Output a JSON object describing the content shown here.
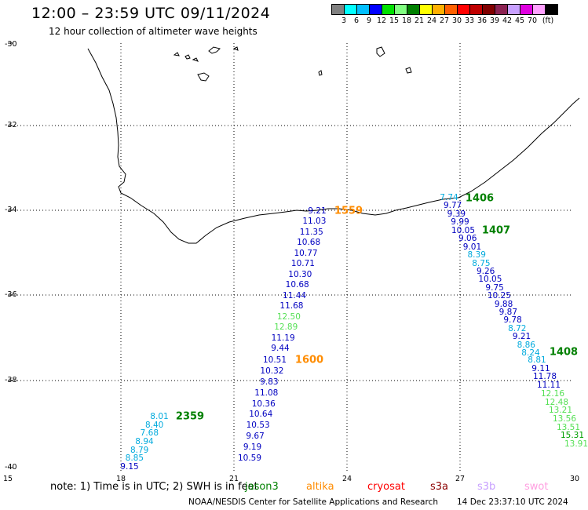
{
  "header": {
    "title": "12:00 – 23:59 UTC 09/11/2024",
    "subtitle": "12 hour collection of altimeter wave heights"
  },
  "colorbar": {
    "colors": [
      "#808080",
      "#00ffff",
      "#00bfff",
      "#0000ff",
      "#00e000",
      "#80ff80",
      "#008000",
      "#ffff00",
      "#ffb000",
      "#ff6000",
      "#ff0000",
      "#c00000",
      "#800000",
      "#8b2252",
      "#c8a0ff",
      "#e000e0",
      "#ffa0ff",
      "#000000"
    ],
    "ticks": [
      "3",
      "6",
      "9",
      "12",
      "15",
      "18",
      "21",
      "24",
      "27",
      "30",
      "33",
      "36",
      "39",
      "42",
      "45",
      "70",
      "(ft)"
    ]
  },
  "map": {
    "lat_labels": [
      "-30",
      "-32",
      "-34",
      "-36",
      "-38",
      "-40"
    ],
    "lon_labels": [
      "15",
      "18",
      "21",
      "24",
      "27",
      "30"
    ]
  },
  "tracks": [
    {
      "satellite": "altika",
      "time_label": "1559",
      "time_color": "#ff8c00",
      "values": [
        "9.21",
        "11.03",
        "11.35",
        "10.68",
        "10.77",
        "10.71",
        "10.30",
        "10.68",
        "11.44",
        "11.68",
        "12.50",
        "12.89",
        "11.19",
        "9.44"
      ]
    },
    {
      "satellite": "altika",
      "time_label": "1600",
      "time_color": "#ff8c00",
      "values": [
        "10.51",
        "10.32",
        "9.83",
        "11.08",
        "10.36",
        "10.64",
        "10.53",
        "9.67",
        "9.19",
        "10.59"
      ]
    },
    {
      "satellite": "jason3",
      "time_label": "1406",
      "time_color": "#008000",
      "values": [
        "7.74",
        "9.77",
        "9.39",
        "9.99"
      ]
    },
    {
      "satellite": "jason3",
      "time_label": "1407",
      "time_color": "#008000",
      "values": [
        "10.05",
        "9.06",
        "9.01",
        "8.39",
        "8.75",
        "9.26",
        "10.05",
        "9.75",
        "10.25",
        "9.88",
        "9.87",
        "9.78",
        "8.72",
        "9.21",
        "8.86",
        "8.24"
      ]
    },
    {
      "satellite": "jason3",
      "time_label": "1408",
      "time_color": "#008000",
      "values": [
        "8.81",
        "9.11",
        "11.78",
        "11.11",
        "12.16",
        "12.48",
        "13.21",
        "13.56",
        "13.51",
        "15.31",
        "13.91"
      ]
    },
    {
      "satellite": "jason3",
      "time_label": "2359",
      "time_color": "#008000",
      "values": [
        "8.01",
        "8.40",
        "7.68",
        "8.94",
        "8.79",
        "8.85",
        "9.15"
      ]
    }
  ],
  "footer": {
    "note": "note:  1) Time is in UTC;  2) SWH is in feet",
    "satellites": [
      {
        "name": "jason3",
        "color": "#008000"
      },
      {
        "name": "altika",
        "color": "#ff8c00"
      },
      {
        "name": "cryosat",
        "color": "#ff0000"
      },
      {
        "name": "s3a",
        "color": "#8b0000"
      },
      {
        "name": "s3b",
        "color": "#c8a0ff"
      },
      {
        "name": "swot",
        "color": "#ff9ee0"
      }
    ],
    "credit": "NOAA/NESDIS Center for Satellite Applications and Research",
    "timestamp": "14 Dec 23:37:10 UTC 2024"
  }
}
